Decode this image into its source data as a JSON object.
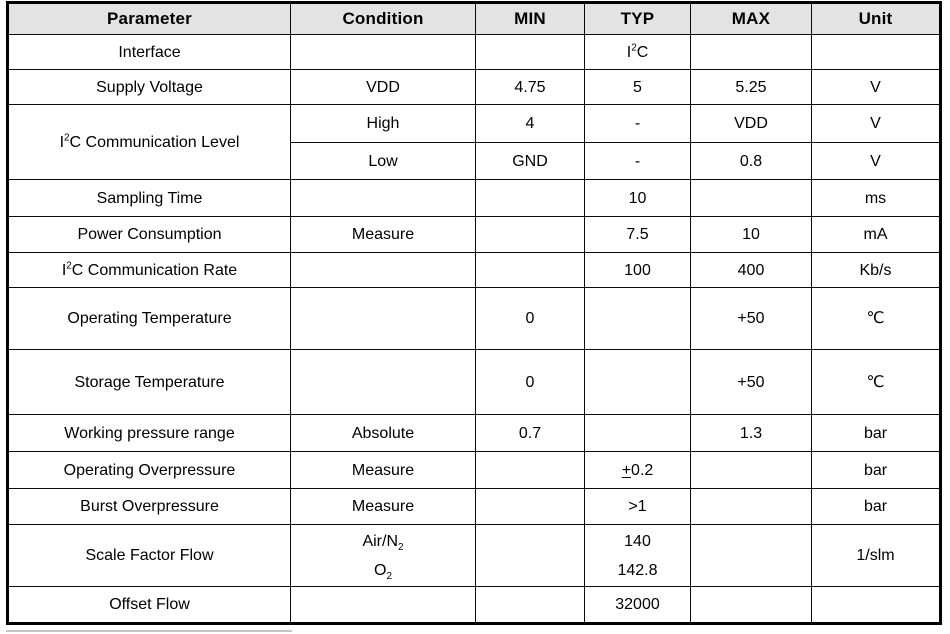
{
  "table": {
    "header_bg": "#e3e3e3",
    "border_color": "#000000",
    "columns": [
      {
        "key": "parameter",
        "label": "Parameter"
      },
      {
        "key": "condition",
        "label": "Condition"
      },
      {
        "key": "min",
        "label": "MIN"
      },
      {
        "key": "typ",
        "label": "TYP"
      },
      {
        "key": "max",
        "label": "MAX"
      },
      {
        "key": "unit",
        "label": "Unit"
      }
    ],
    "rows": [
      {
        "name": "interface",
        "h": 35,
        "cells": [
          {
            "col": "parameter",
            "text": "Interface"
          },
          {
            "col": "condition",
            "text": ""
          },
          {
            "col": "min",
            "text": ""
          },
          {
            "col": "typ",
            "parts": [
              {
                "t": "I"
              },
              {
                "t": "2",
                "sup": true
              },
              {
                "t": "C"
              }
            ]
          },
          {
            "col": "max",
            "text": ""
          },
          {
            "col": "unit",
            "text": ""
          }
        ]
      },
      {
        "name": "supply-voltage",
        "h": 35,
        "cells": [
          {
            "col": "parameter",
            "text": "Supply Voltage"
          },
          {
            "col": "condition",
            "text": "VDD"
          },
          {
            "col": "min",
            "text": "4.75"
          },
          {
            "col": "typ",
            "text": "5"
          },
          {
            "col": "max",
            "text": "5.25"
          },
          {
            "col": "unit",
            "text": "V"
          }
        ]
      },
      {
        "name": "i2c-communication-level-high",
        "h": 38,
        "cells": [
          {
            "col": "parameter",
            "rowspan": 2,
            "parts": [
              {
                "t": "I"
              },
              {
                "t": "2",
                "sup": true
              },
              {
                "t": "C Communication Level"
              }
            ]
          },
          {
            "col": "condition",
            "text": "High"
          },
          {
            "col": "min",
            "text": "4"
          },
          {
            "col": "typ",
            "text": "-"
          },
          {
            "col": "max",
            "text": "VDD"
          },
          {
            "col": "unit",
            "text": "V"
          }
        ]
      },
      {
        "name": "i2c-communication-level-low",
        "h": 37,
        "cells": [
          {
            "col": "condition",
            "text": "Low"
          },
          {
            "col": "min",
            "text": "GND"
          },
          {
            "col": "typ",
            "text": "-"
          },
          {
            "col": "max",
            "text": "0.8"
          },
          {
            "col": "unit",
            "text": "V"
          }
        ]
      },
      {
        "name": "sampling-time",
        "h": 37,
        "cells": [
          {
            "col": "parameter",
            "text": "Sampling Time"
          },
          {
            "col": "condition",
            "text": ""
          },
          {
            "col": "min",
            "text": ""
          },
          {
            "col": "typ",
            "text": "10"
          },
          {
            "col": "max",
            "text": ""
          },
          {
            "col": "unit",
            "text": "ms"
          }
        ]
      },
      {
        "name": "power-consumption",
        "h": 36,
        "cells": [
          {
            "col": "parameter",
            "text": "Power Consumption"
          },
          {
            "col": "condition",
            "text": "Measure"
          },
          {
            "col": "min",
            "text": ""
          },
          {
            "col": "typ",
            "text": "7.5"
          },
          {
            "col": "max",
            "text": "10"
          },
          {
            "col": "unit",
            "text": "mA"
          }
        ]
      },
      {
        "name": "i2c-communication-rate",
        "h": 35,
        "cells": [
          {
            "col": "parameter",
            "parts": [
              {
                "t": "I"
              },
              {
                "t": "2",
                "sup": true
              },
              {
                "t": "C Communication Rate"
              }
            ]
          },
          {
            "col": "condition",
            "text": ""
          },
          {
            "col": "min",
            "text": ""
          },
          {
            "col": "typ",
            "text": "100"
          },
          {
            "col": "max",
            "text": "400"
          },
          {
            "col": "unit",
            "text": "Kb/s"
          }
        ]
      },
      {
        "name": "operating-temperature",
        "h": 62,
        "cells": [
          {
            "col": "parameter",
            "text": "Operating Temperature"
          },
          {
            "col": "condition",
            "text": ""
          },
          {
            "col": "min",
            "text": "0"
          },
          {
            "col": "typ",
            "text": ""
          },
          {
            "col": "max",
            "text": "+50"
          },
          {
            "col": "unit",
            "text": "℃"
          }
        ]
      },
      {
        "name": "storage-temperature",
        "h": 65,
        "cells": [
          {
            "col": "parameter",
            "text": "Storage Temperature"
          },
          {
            "col": "condition",
            "text": ""
          },
          {
            "col": "min",
            "text": "0"
          },
          {
            "col": "typ",
            "text": ""
          },
          {
            "col": "max",
            "text": "+50"
          },
          {
            "col": "unit",
            "text": "℃"
          }
        ]
      },
      {
        "name": "working-pressure-range",
        "h": 37,
        "cells": [
          {
            "col": "parameter",
            "text": "Working pressure range"
          },
          {
            "col": "condition",
            "text": "Absolute"
          },
          {
            "col": "min",
            "text": "0.7"
          },
          {
            "col": "typ",
            "text": ""
          },
          {
            "col": "max",
            "text": "1.3"
          },
          {
            "col": "unit",
            "text": "bar"
          }
        ]
      },
      {
        "name": "operating-overpressure",
        "h": 37,
        "cells": [
          {
            "col": "parameter",
            "text": "Operating Overpressure"
          },
          {
            "col": "condition",
            "text": "Measure"
          },
          {
            "col": "min",
            "text": ""
          },
          {
            "col": "typ",
            "parts": [
              {
                "t": "+",
                "u": true
              },
              {
                "t": "0.2"
              }
            ]
          },
          {
            "col": "max",
            "text": ""
          },
          {
            "col": "unit",
            "text": "bar"
          }
        ]
      },
      {
        "name": "burst-overpressure",
        "h": 36,
        "cells": [
          {
            "col": "parameter",
            "text": "Burst Overpressure"
          },
          {
            "col": "condition",
            "text": "Measure"
          },
          {
            "col": "min",
            "text": ""
          },
          {
            "col": "typ",
            "text": ">1"
          },
          {
            "col": "max",
            "text": ""
          },
          {
            "col": "unit",
            "text": "bar"
          }
        ]
      },
      {
        "name": "scale-factor-flow",
        "h": 62,
        "cells": [
          {
            "col": "parameter",
            "text": "Scale Factor Flow"
          },
          {
            "col": "condition",
            "parts": [
              {
                "t": "Air/N"
              },
              {
                "t": "2",
                "sub": true
              },
              {
                "br": true
              },
              {
                "t": "O"
              },
              {
                "t": "2",
                "sub": true
              }
            ]
          },
          {
            "col": "min",
            "text": ""
          },
          {
            "col": "typ",
            "parts": [
              {
                "t": "140"
              },
              {
                "br": true
              },
              {
                "t": "142.8"
              }
            ]
          },
          {
            "col": "max",
            "text": ""
          },
          {
            "col": "unit",
            "text": "1/slm"
          }
        ]
      },
      {
        "name": "offset-flow",
        "h": 37,
        "cells": [
          {
            "col": "parameter",
            "text": "Offset Flow"
          },
          {
            "col": "condition",
            "text": ""
          },
          {
            "col": "min",
            "text": ""
          },
          {
            "col": "typ",
            "text": "32000"
          },
          {
            "col": "max",
            "text": ""
          },
          {
            "col": "unit",
            "text": ""
          }
        ]
      }
    ]
  }
}
